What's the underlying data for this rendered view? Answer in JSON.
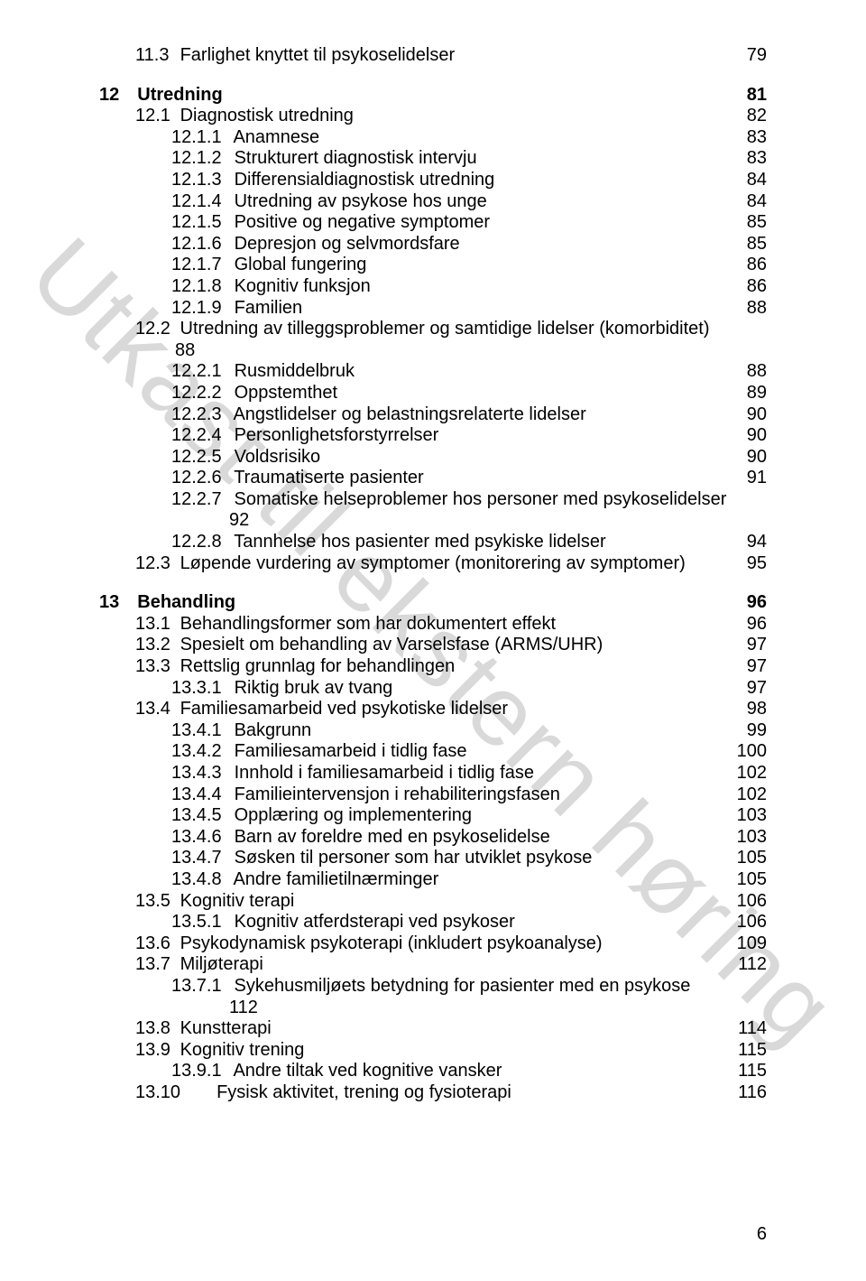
{
  "watermark": "Utkast til ekstern høring",
  "page_number": "6",
  "colors": {
    "text": "#000000",
    "background": "#ffffff",
    "watermark": "#d9d9d9"
  },
  "typography": {
    "body_fontsize_pt": 15,
    "watermark_fontsize_pt": 82,
    "font_family": "Arial"
  },
  "toc": [
    {
      "level": 2,
      "num": "11.3",
      "title": "Farlighet knyttet til psykoselidelser",
      "page": "79",
      "bold": false
    },
    {
      "gap": true
    },
    {
      "level": 1,
      "num": "12",
      "title": "Utredning",
      "page": "81",
      "bold": true
    },
    {
      "level": 2,
      "num": "12.1",
      "title": "Diagnostisk utredning",
      "page": "82"
    },
    {
      "level": 3,
      "num": "12.1.1",
      "title": "Anamnese",
      "page": "83"
    },
    {
      "level": 3,
      "num": "12.1.2",
      "title": "Strukturert diagnostisk intervju",
      "page": "83"
    },
    {
      "level": 3,
      "num": "12.1.3",
      "title": "Differensialdiagnostisk utredning",
      "page": "84"
    },
    {
      "level": 3,
      "num": "12.1.4",
      "title": "Utredning av psykose hos unge",
      "page": "84"
    },
    {
      "level": 3,
      "num": "12.1.5",
      "title": "Positive og negative symptomer",
      "page": "85"
    },
    {
      "level": 3,
      "num": "12.1.6",
      "title": "Depresjon og selvmordsfare",
      "page": "85"
    },
    {
      "level": 3,
      "num": "12.1.7",
      "title": "Global fungering",
      "page": "86"
    },
    {
      "level": 3,
      "num": "12.1.8",
      "title": "Kognitiv funksjon",
      "page": "86"
    },
    {
      "level": 3,
      "num": "12.1.9",
      "title": "Familien",
      "page": "88"
    },
    {
      "level": 2,
      "num": "12.2",
      "title": "Utredning av tilleggsproblemer og samtidige lidelser (komorbiditet)",
      "page": "88",
      "wrap_page": true
    },
    {
      "level": 3,
      "num": "12.2.1",
      "title": "Rusmiddelbruk",
      "page": "88"
    },
    {
      "level": 3,
      "num": "12.2.2",
      "title": "Oppstemthet",
      "page": "89"
    },
    {
      "level": 3,
      "num": "12.2.3",
      "title": "Angstlidelser og belastningsrelaterte lidelser",
      "page": "90"
    },
    {
      "level": 3,
      "num": "12.2.4",
      "title": "Personlighetsforstyrrelser",
      "page": "90"
    },
    {
      "level": 3,
      "num": "12.2.5",
      "title": "Voldsrisiko",
      "page": "90"
    },
    {
      "level": 3,
      "num": "12.2.6",
      "title": "Traumatiserte pasienter",
      "page": "91"
    },
    {
      "level": 3,
      "num": "12.2.7",
      "title": "Somatiske helseproblemer hos personer med psykoselidelser",
      "page": "92",
      "wrap_page": true
    },
    {
      "level": 3,
      "num": "12.2.8",
      "title": "Tannhelse hos pasienter med psykiske lidelser",
      "page": "94"
    },
    {
      "level": 2,
      "num": "12.3",
      "title": "Løpende vurdering av symptomer (monitorering av symptomer)",
      "page": "95"
    },
    {
      "gap": true
    },
    {
      "level": 1,
      "num": "13",
      "title": "Behandling",
      "page": "96",
      "bold": true
    },
    {
      "level": 2,
      "num": "13.1",
      "title": "Behandlingsformer som har dokumentert effekt",
      "page": "96"
    },
    {
      "level": 2,
      "num": "13.2",
      "title": "Spesielt om behandling av Varselsfase (ARMS/UHR)",
      "page": "97"
    },
    {
      "level": 2,
      "num": "13.3",
      "title": "Rettslig grunnlag for behandlingen",
      "page": "97"
    },
    {
      "level": 3,
      "num": "13.3.1",
      "title": "Riktig bruk av tvang",
      "page": "97"
    },
    {
      "level": 2,
      "num": "13.4",
      "title": "Familiesamarbeid ved psykotiske lidelser",
      "page": "98"
    },
    {
      "level": 3,
      "num": "13.4.1",
      "title": "Bakgrunn",
      "page": "99"
    },
    {
      "level": 3,
      "num": "13.4.2",
      "title": "Familiesamarbeid i tidlig fase",
      "page": "100"
    },
    {
      "level": 3,
      "num": "13.4.3",
      "title": "Innhold i familiesamarbeid i tidlig fase",
      "page": "102"
    },
    {
      "level": 3,
      "num": "13.4.4",
      "title": "Familieintervensjon i rehabiliteringsfasen",
      "page": "102"
    },
    {
      "level": 3,
      "num": "13.4.5",
      "title": "Opplæring og implementering",
      "page": "103"
    },
    {
      "level": 3,
      "num": "13.4.6",
      "title": "Barn av foreldre med en psykoselidelse",
      "page": "103"
    },
    {
      "level": 3,
      "num": "13.4.7",
      "title": "Søsken til personer som har utviklet psykose",
      "page": "105"
    },
    {
      "level": 3,
      "num": "13.4.8",
      "title": "Andre familietilnærminger",
      "page": "105"
    },
    {
      "level": 2,
      "num": "13.5",
      "title": "Kognitiv terapi",
      "page": "106"
    },
    {
      "level": 3,
      "num": "13.5.1",
      "title": "Kognitiv atferdsterapi ved psykoser",
      "page": "106"
    },
    {
      "level": 2,
      "num": "13.6",
      "title": "Psykodynamisk psykoterapi (inkludert psykoanalyse)",
      "page": "109"
    },
    {
      "level": 2,
      "num": "13.7",
      "title": "Miljøterapi",
      "page": "112"
    },
    {
      "level": 3,
      "num": "13.7.1",
      "title": "Sykehusmiljøets betydning for pasienter med en psykose",
      "page": "112",
      "wrap_page": true
    },
    {
      "level": 2,
      "num": "13.8",
      "title": "Kunstterapi",
      "page": "114"
    },
    {
      "level": 2,
      "num": "13.9",
      "title": "Kognitiv trening",
      "page": "115"
    },
    {
      "level": 3,
      "num": "13.9.1",
      "title": "Andre tiltak ved kognitive vansker",
      "page": "115"
    },
    {
      "level": 2,
      "num": "13.10",
      "title": "Fysisk aktivitet, trening og fysioterapi",
      "page": "116",
      "tab_after_num": true
    }
  ]
}
